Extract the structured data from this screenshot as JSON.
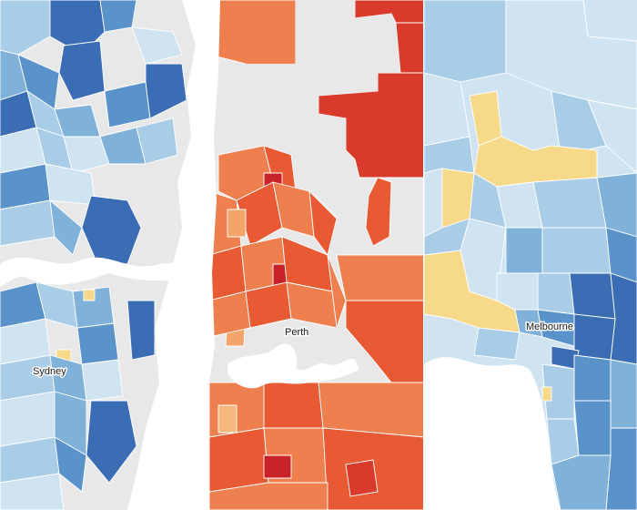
{
  "panels": [
    {
      "id": "sydney",
      "city_label": "Sydney"
    },
    {
      "id": "perth",
      "city_label": "Perth"
    },
    {
      "id": "melbourne",
      "city_label": "Melbourne"
    }
  ],
  "colors": {
    "water": "#ffffff",
    "no_data": "#e8e8e8",
    "blue_scale": [
      "#cfe3f1",
      "#a9cde6",
      "#7fb1d9",
      "#5a93c9",
      "#3b6db5"
    ],
    "red_scale": [
      "#f3a46a",
      "#ee7f4e",
      "#e85a34",
      "#d93a2b",
      "#c8232a"
    ],
    "yellow": "#f7d98a",
    "peach": "#f6b77e"
  }
}
